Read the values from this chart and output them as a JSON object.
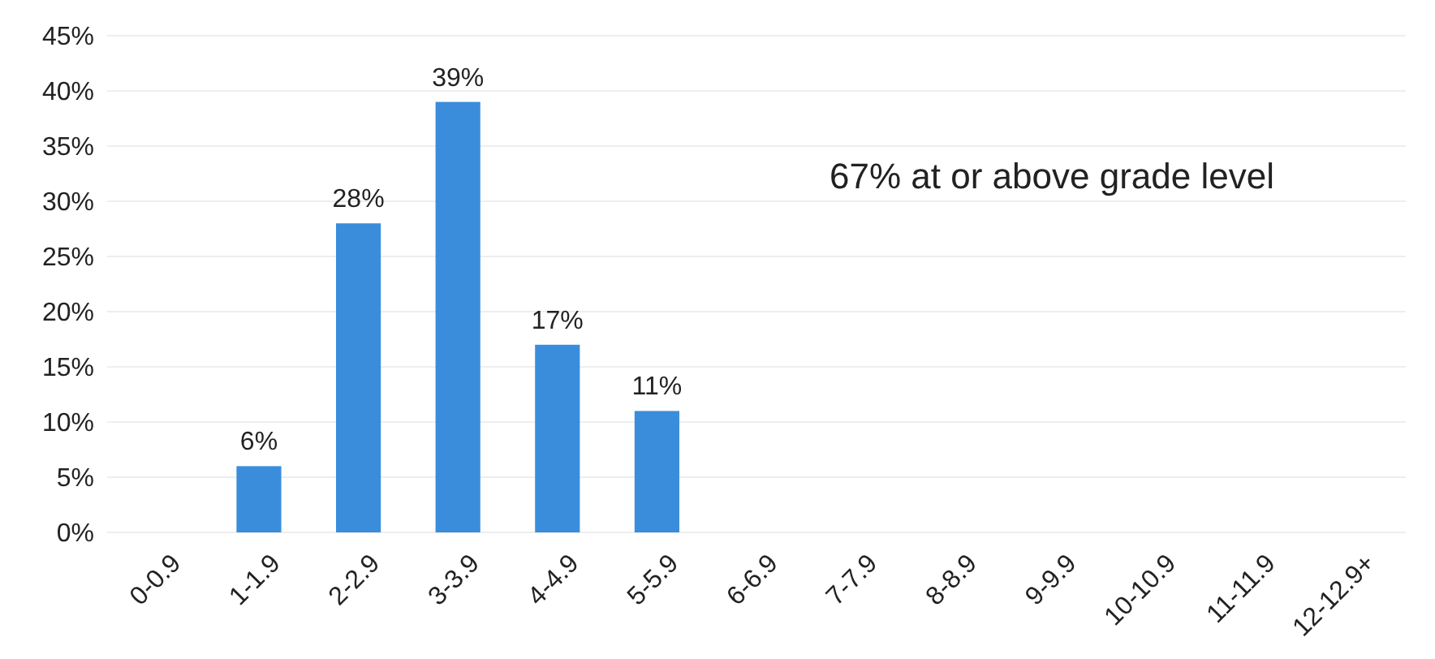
{
  "chart_data": {
    "type": "bar",
    "categories": [
      "0-0.9",
      "1-1.9",
      "2-2.9",
      "3-3.9",
      "4-4.9",
      "5-5.9",
      "6-6.9",
      "7-7.9",
      "8-8.9",
      "9-9.9",
      "10-10.9",
      "11-11.9",
      "12-12.9+"
    ],
    "values": [
      null,
      6,
      28,
      39,
      17,
      11,
      null,
      null,
      null,
      null,
      null,
      null,
      null
    ],
    "value_labels": [
      null,
      "6%",
      "28%",
      "39%",
      "17%",
      "11%",
      null,
      null,
      null,
      null,
      null,
      null,
      null
    ],
    "color": "#3a8ddb",
    "ylim": [
      0,
      45
    ],
    "yticks": [
      {
        "value": 0,
        "label": "0%"
      },
      {
        "value": 5,
        "label": "5%"
      },
      {
        "value": 10,
        "label": "10%"
      },
      {
        "value": 15,
        "label": "15%"
      },
      {
        "value": 20,
        "label": "20%"
      },
      {
        "value": 25,
        "label": "25%"
      },
      {
        "value": 30,
        "label": "30%"
      },
      {
        "value": 35,
        "label": "35%"
      },
      {
        "value": 40,
        "label": "40%"
      },
      {
        "value": 45,
        "label": "45%"
      }
    ],
    "grid": "y",
    "annotations": [
      "67% at or above grade level"
    ]
  }
}
